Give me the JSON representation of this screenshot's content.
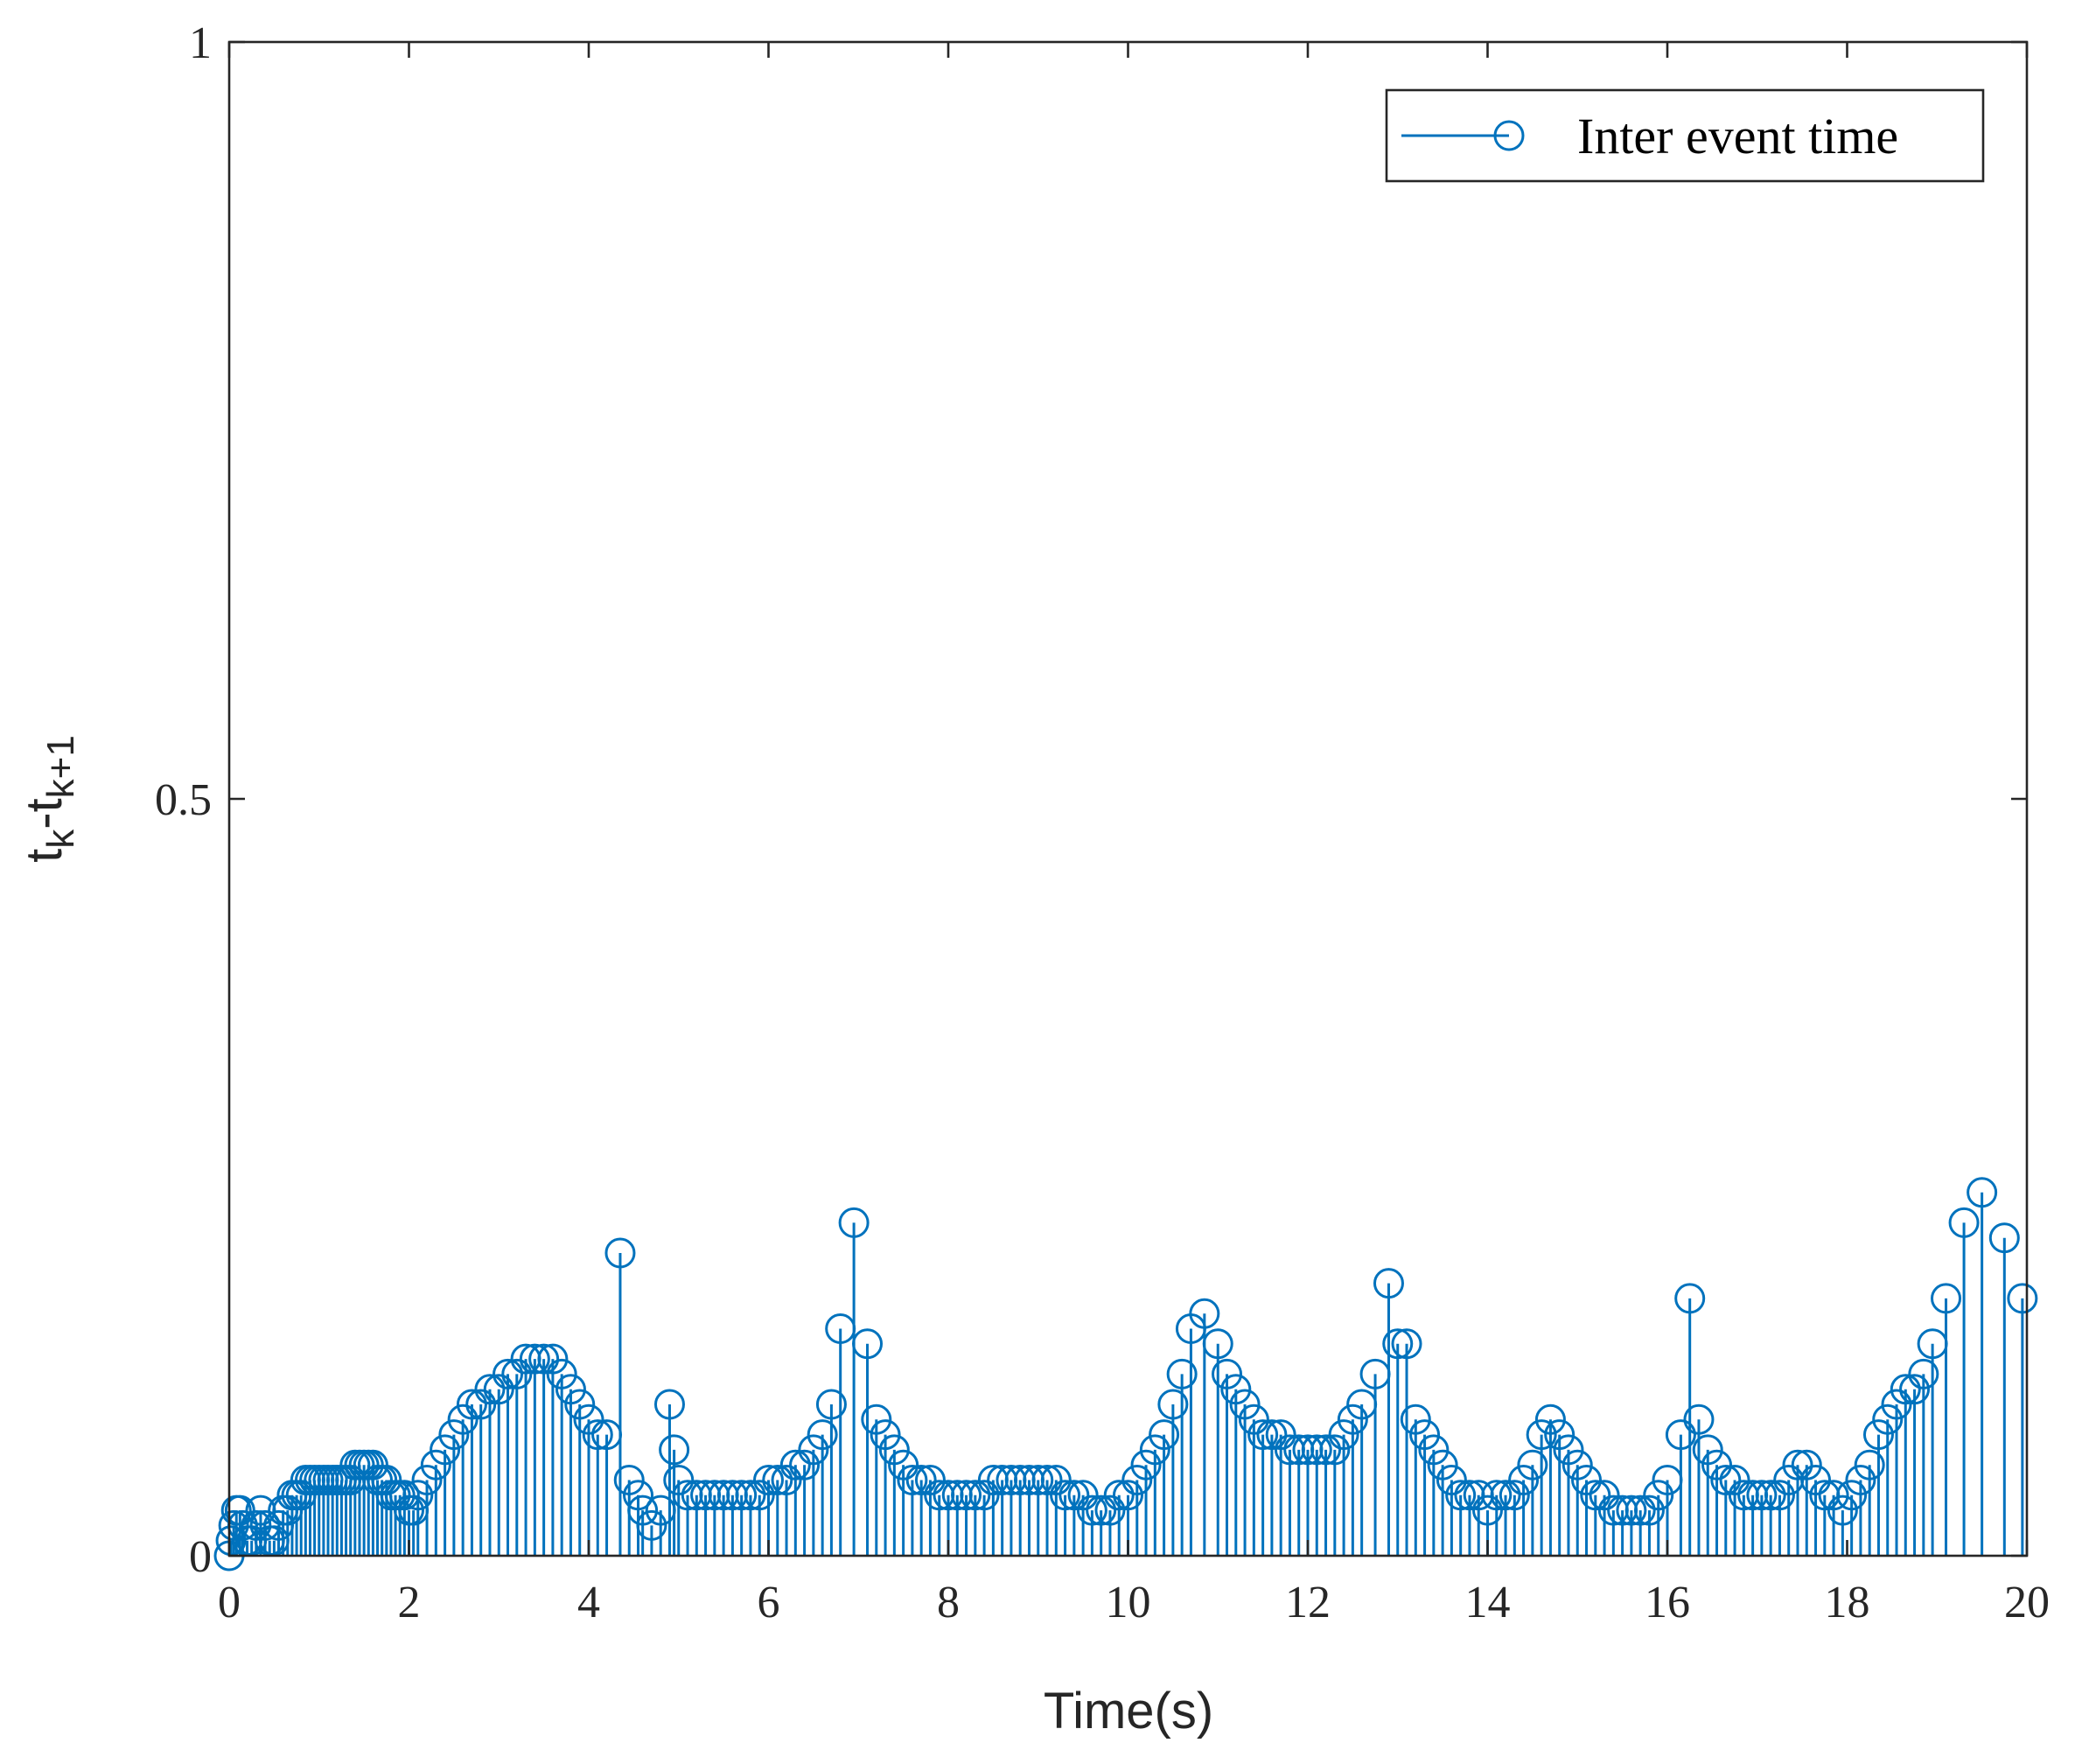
{
  "chart_data": {
    "type": "stem",
    "title": "",
    "xlabel": "Time(s)",
    "ylabel_base": "t",
    "ylabel_sub1": "k",
    "ylabel_mid": "-t",
    "ylabel_sub2": "k+1",
    "xlim": [
      0,
      20
    ],
    "ylim": [
      0,
      1
    ],
    "xticks": [
      0,
      2,
      4,
      6,
      8,
      10,
      12,
      14,
      16,
      18,
      20
    ],
    "yticks": [
      0,
      0.5,
      1
    ],
    "xtick_labels": [
      "0",
      "2",
      "4",
      "6",
      "8",
      "10",
      "12",
      "14",
      "16",
      "18",
      "20"
    ],
    "ytick_labels": [
      "0",
      "0.5",
      "1"
    ],
    "legend": {
      "label": "Inter event time",
      "position": "top-right"
    },
    "color": "#0072BD",
    "series": [
      {
        "name": "Inter event time",
        "x": [
          0.0,
          0.02,
          0.05,
          0.08,
          0.12,
          0.15,
          0.2,
          0.25,
          0.3,
          0.35,
          0.4,
          0.45,
          0.5,
          0.55,
          0.6,
          0.65,
          0.7,
          0.75,
          0.8,
          0.85,
          0.9,
          0.95,
          1.0,
          1.05,
          1.1,
          1.15,
          1.2,
          1.25,
          1.3,
          1.35,
          1.4,
          1.45,
          1.5,
          1.55,
          1.6,
          1.65,
          1.7,
          1.75,
          1.8,
          1.85,
          1.9,
          1.95,
          2.0,
          2.05,
          2.1,
          2.2,
          2.3,
          2.4,
          2.5,
          2.6,
          2.7,
          2.8,
          2.9,
          3.0,
          3.1,
          3.2,
          3.3,
          3.4,
          3.5,
          3.6,
          3.7,
          3.8,
          3.9,
          4.0,
          4.1,
          4.2,
          4.35,
          4.45,
          4.55,
          4.6,
          4.7,
          4.8,
          4.9,
          4.95,
          5.0,
          5.1,
          5.2,
          5.3,
          5.4,
          5.5,
          5.6,
          5.7,
          5.8,
          5.9,
          6.0,
          6.1,
          6.2,
          6.3,
          6.4,
          6.5,
          6.6,
          6.7,
          6.8,
          6.95,
          7.1,
          7.2,
          7.3,
          7.4,
          7.5,
          7.6,
          7.7,
          7.8,
          7.9,
          8.0,
          8.1,
          8.2,
          8.3,
          8.4,
          8.5,
          8.6,
          8.7,
          8.8,
          8.9,
          9.0,
          9.1,
          9.2,
          9.3,
          9.4,
          9.5,
          9.6,
          9.7,
          9.8,
          9.9,
          10.0,
          10.1,
          10.2,
          10.3,
          10.4,
          10.5,
          10.6,
          10.7,
          10.85,
          11.0,
          11.1,
          11.2,
          11.3,
          11.4,
          11.5,
          11.6,
          11.7,
          11.8,
          11.9,
          12.0,
          12.1,
          12.2,
          12.3,
          12.4,
          12.5,
          12.6,
          12.75,
          12.9,
          13.0,
          13.1,
          13.2,
          13.3,
          13.4,
          13.5,
          13.6,
          13.7,
          13.8,
          13.9,
          14.0,
          14.1,
          14.2,
          14.3,
          14.4,
          14.5,
          14.6,
          14.7,
          14.8,
          14.9,
          15.0,
          15.1,
          15.2,
          15.3,
          15.4,
          15.5,
          15.6,
          15.7,
          15.8,
          15.9,
          16.0,
          16.15,
          16.25,
          16.35,
          16.45,
          16.55,
          16.65,
          16.75,
          16.85,
          16.95,
          17.05,
          17.15,
          17.25,
          17.35,
          17.45,
          17.55,
          17.65,
          17.75,
          17.85,
          17.95,
          18.05,
          18.15,
          18.25,
          18.35,
          18.45,
          18.55,
          18.65,
          18.75,
          18.85,
          18.95,
          19.1,
          19.3,
          19.5,
          19.75,
          19.95
        ],
        "y": [
          0.0,
          0.01,
          0.02,
          0.03,
          0.03,
          0.02,
          0.01,
          0.01,
          0.02,
          0.03,
          0.02,
          0.01,
          0.01,
          0.02,
          0.03,
          0.03,
          0.04,
          0.04,
          0.04,
          0.05,
          0.05,
          0.05,
          0.05,
          0.05,
          0.05,
          0.05,
          0.05,
          0.05,
          0.05,
          0.05,
          0.06,
          0.06,
          0.06,
          0.06,
          0.06,
          0.05,
          0.05,
          0.05,
          0.04,
          0.04,
          0.04,
          0.04,
          0.03,
          0.03,
          0.04,
          0.05,
          0.06,
          0.07,
          0.08,
          0.09,
          0.1,
          0.1,
          0.11,
          0.11,
          0.12,
          0.12,
          0.13,
          0.13,
          0.13,
          0.13,
          0.12,
          0.11,
          0.1,
          0.09,
          0.08,
          0.08,
          0.2,
          0.05,
          0.04,
          0.03,
          0.02,
          0.03,
          0.1,
          0.07,
          0.05,
          0.04,
          0.04,
          0.04,
          0.04,
          0.04,
          0.04,
          0.04,
          0.04,
          0.04,
          0.05,
          0.05,
          0.05,
          0.06,
          0.06,
          0.07,
          0.08,
          0.1,
          0.15,
          0.22,
          0.14,
          0.09,
          0.08,
          0.07,
          0.06,
          0.05,
          0.05,
          0.05,
          0.04,
          0.04,
          0.04,
          0.04,
          0.04,
          0.04,
          0.05,
          0.05,
          0.05,
          0.05,
          0.05,
          0.05,
          0.05,
          0.05,
          0.04,
          0.04,
          0.04,
          0.03,
          0.03,
          0.03,
          0.04,
          0.04,
          0.05,
          0.06,
          0.07,
          0.08,
          0.1,
          0.12,
          0.15,
          0.16,
          0.14,
          0.12,
          0.11,
          0.1,
          0.09,
          0.08,
          0.08,
          0.08,
          0.07,
          0.07,
          0.07,
          0.07,
          0.07,
          0.07,
          0.08,
          0.09,
          0.1,
          0.12,
          0.18,
          0.14,
          0.14,
          0.09,
          0.08,
          0.07,
          0.06,
          0.05,
          0.04,
          0.04,
          0.04,
          0.03,
          0.04,
          0.04,
          0.04,
          0.05,
          0.06,
          0.08,
          0.09,
          0.08,
          0.07,
          0.06,
          0.05,
          0.04,
          0.04,
          0.03,
          0.03,
          0.03,
          0.03,
          0.03,
          0.04,
          0.05,
          0.08,
          0.17,
          0.09,
          0.07,
          0.06,
          0.05,
          0.05,
          0.04,
          0.04,
          0.04,
          0.04,
          0.04,
          0.05,
          0.06,
          0.06,
          0.05,
          0.04,
          0.04,
          0.03,
          0.04,
          0.05,
          0.06,
          0.08,
          0.09,
          0.1,
          0.11,
          0.11,
          0.12,
          0.14,
          0.17,
          0.22,
          0.24,
          0.21,
          0.17
        ]
      }
    ]
  }
}
